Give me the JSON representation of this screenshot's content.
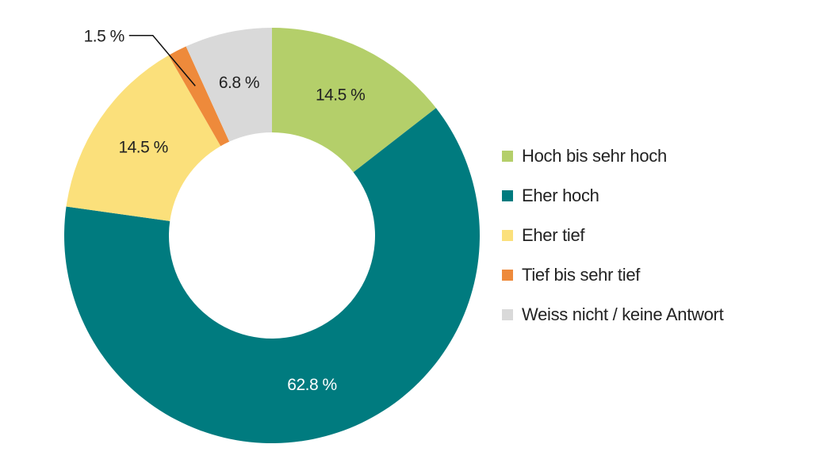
{
  "chart_data": {
    "type": "donut",
    "categories": [
      "Hoch bis sehr hoch",
      "Eher hoch",
      "Eher tief",
      "Tief bis sehr tief",
      "Weiss nicht / keine Antwort"
    ],
    "values": [
      14.5,
      62.8,
      14.5,
      1.5,
      6.8
    ],
    "value_labels": [
      "14.5 %",
      "62.8 %",
      "14.5 %",
      "1.5 %",
      "6.8 %"
    ],
    "colors": [
      "#b4cf6a",
      "#007b7f",
      "#fbe07b",
      "#ee8a3b",
      "#d9d9d9"
    ],
    "legend": "right"
  }
}
